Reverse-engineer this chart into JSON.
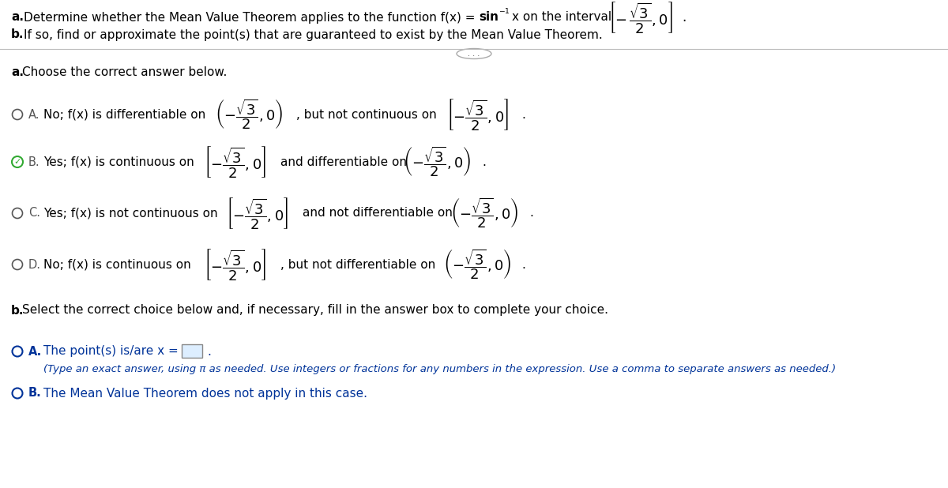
{
  "bg_color": "#ffffff",
  "text_color": "#000000",
  "blue_color": "#003399",
  "green_check_color": "#33aa33",
  "part_b_A_sub": "(Type an exact answer, using π as needed. Use integers or fractions for any numbers in the expression. Use a comma to separate answers as needed.)",
  "part_b_B_text": "The Mean Value Theorem does not apply in this case.",
  "section_b_header": "b. Select the correct choice below and, if necessary, fill in the answer box to complete your choice."
}
